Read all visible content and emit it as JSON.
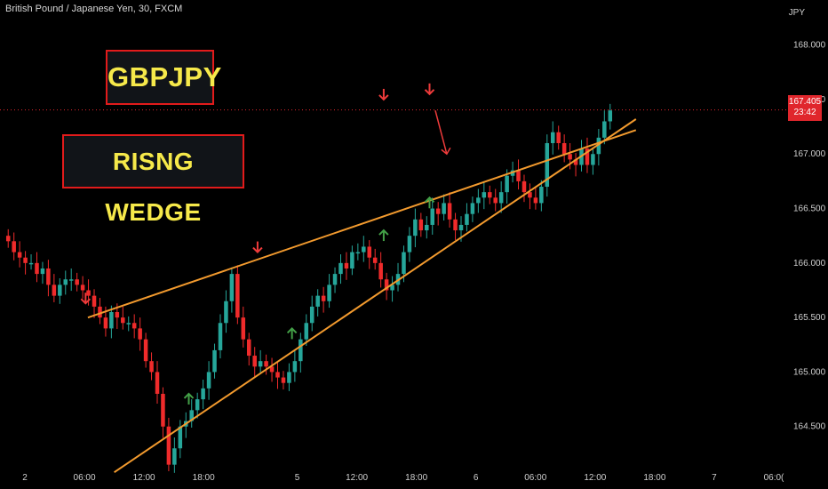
{
  "header": {
    "instrument": "British Pound / Japanese Yen, 30, FXCM",
    "currency": "JPY"
  },
  "annotations": {
    "symbol": "GBPJPY",
    "pattern": "RISNG WEDGE"
  },
  "last_price": {
    "value": "167.405",
    "countdown": "23:42"
  },
  "colors": {
    "background": "#000000",
    "bull": "#26a69a",
    "bear": "#ef2b2b",
    "wedge_line": "#f29a2e",
    "arrow_down": "#ef3b3b",
    "arrow_up": "#43a047",
    "label_text": "#f6e94a",
    "label_border": "#e21b1b",
    "price_tag": "#e0262c"
  },
  "chart_data": {
    "type": "candlestick",
    "title": "British Pound / Japanese Yen, 30, FXCM",
    "y_unit": "JPY",
    "ylim": [
      164.09,
      168.25
    ],
    "y_ticks": [
      "164.500",
      "165.000",
      "165.500",
      "166.000",
      "166.500",
      "167.000",
      "167.500",
      "168.000"
    ],
    "x_ticks": [
      "2",
      "06:00",
      "12:00",
      "18:00",
      "5",
      "12:00",
      "18:00",
      "6",
      "06:00",
      "12:00",
      "18:00",
      "7",
      "06:0("
    ],
    "x_tick_index": [
      8,
      29,
      50,
      71,
      104,
      125,
      146,
      167,
      188,
      209,
      230,
      251,
      272
    ],
    "grid": false,
    "approx_closes": [
      166.2,
      166.1,
      166.05,
      166.0,
      166.0,
      165.9,
      165.95,
      165.8,
      165.7,
      165.8,
      165.85,
      165.85,
      165.8,
      165.75,
      165.7,
      165.6,
      165.5,
      165.4,
      165.55,
      165.5,
      165.45,
      165.45,
      165.4,
      165.3,
      165.1,
      165.0,
      164.8,
      164.5,
      164.15,
      164.3,
      164.5,
      164.55,
      164.65,
      164.75,
      164.85,
      165.0,
      165.2,
      165.45,
      165.65,
      165.9,
      165.5,
      165.3,
      165.15,
      165.05,
      165.1,
      165.05,
      165.0,
      164.95,
      164.9,
      165.0,
      165.1,
      165.3,
      165.45,
      165.6,
      165.7,
      165.65,
      165.8,
      165.9,
      166.0,
      165.95,
      166.1,
      166.1,
      166.15,
      166.05,
      166.0,
      165.85,
      165.75,
      165.8,
      165.9,
      166.1,
      166.25,
      166.4,
      166.3,
      166.35,
      166.5,
      166.45,
      166.55,
      166.4,
      166.3,
      166.35,
      166.45,
      166.55,
      166.6,
      166.65,
      166.6,
      166.55,
      166.65,
      166.8,
      166.85,
      166.75,
      166.65,
      166.6,
      166.55,
      166.7,
      167.1,
      167.2,
      167.1,
      167.0,
      166.95,
      166.9,
      167.05,
      166.9,
      167.0,
      167.15,
      167.3,
      167.4
    ],
    "wedge": {
      "upper": [
        [
          7.2,
          165.5
        ],
        [
          39.5,
          167.03
        ],
        [
          55,
          167.22
        ]
      ],
      "lower": [
        [
          9.5,
          164.08
        ],
        [
          22,
          165.05
        ],
        [
          55,
          167.32
        ]
      ]
    },
    "markers": {
      "down": [
        [
          7,
          165.63
        ],
        [
          22,
          166.1
        ],
        [
          33,
          167.5
        ],
        [
          37,
          167.55
        ]
      ],
      "up": [
        [
          16,
          164.8
        ],
        [
          25,
          165.4
        ],
        [
          33,
          166.3
        ],
        [
          37,
          166.6
        ]
      ]
    },
    "projection_arrow": [
      [
        37.5,
        167.4
      ],
      [
        38.5,
        167.0
      ]
    ]
  }
}
